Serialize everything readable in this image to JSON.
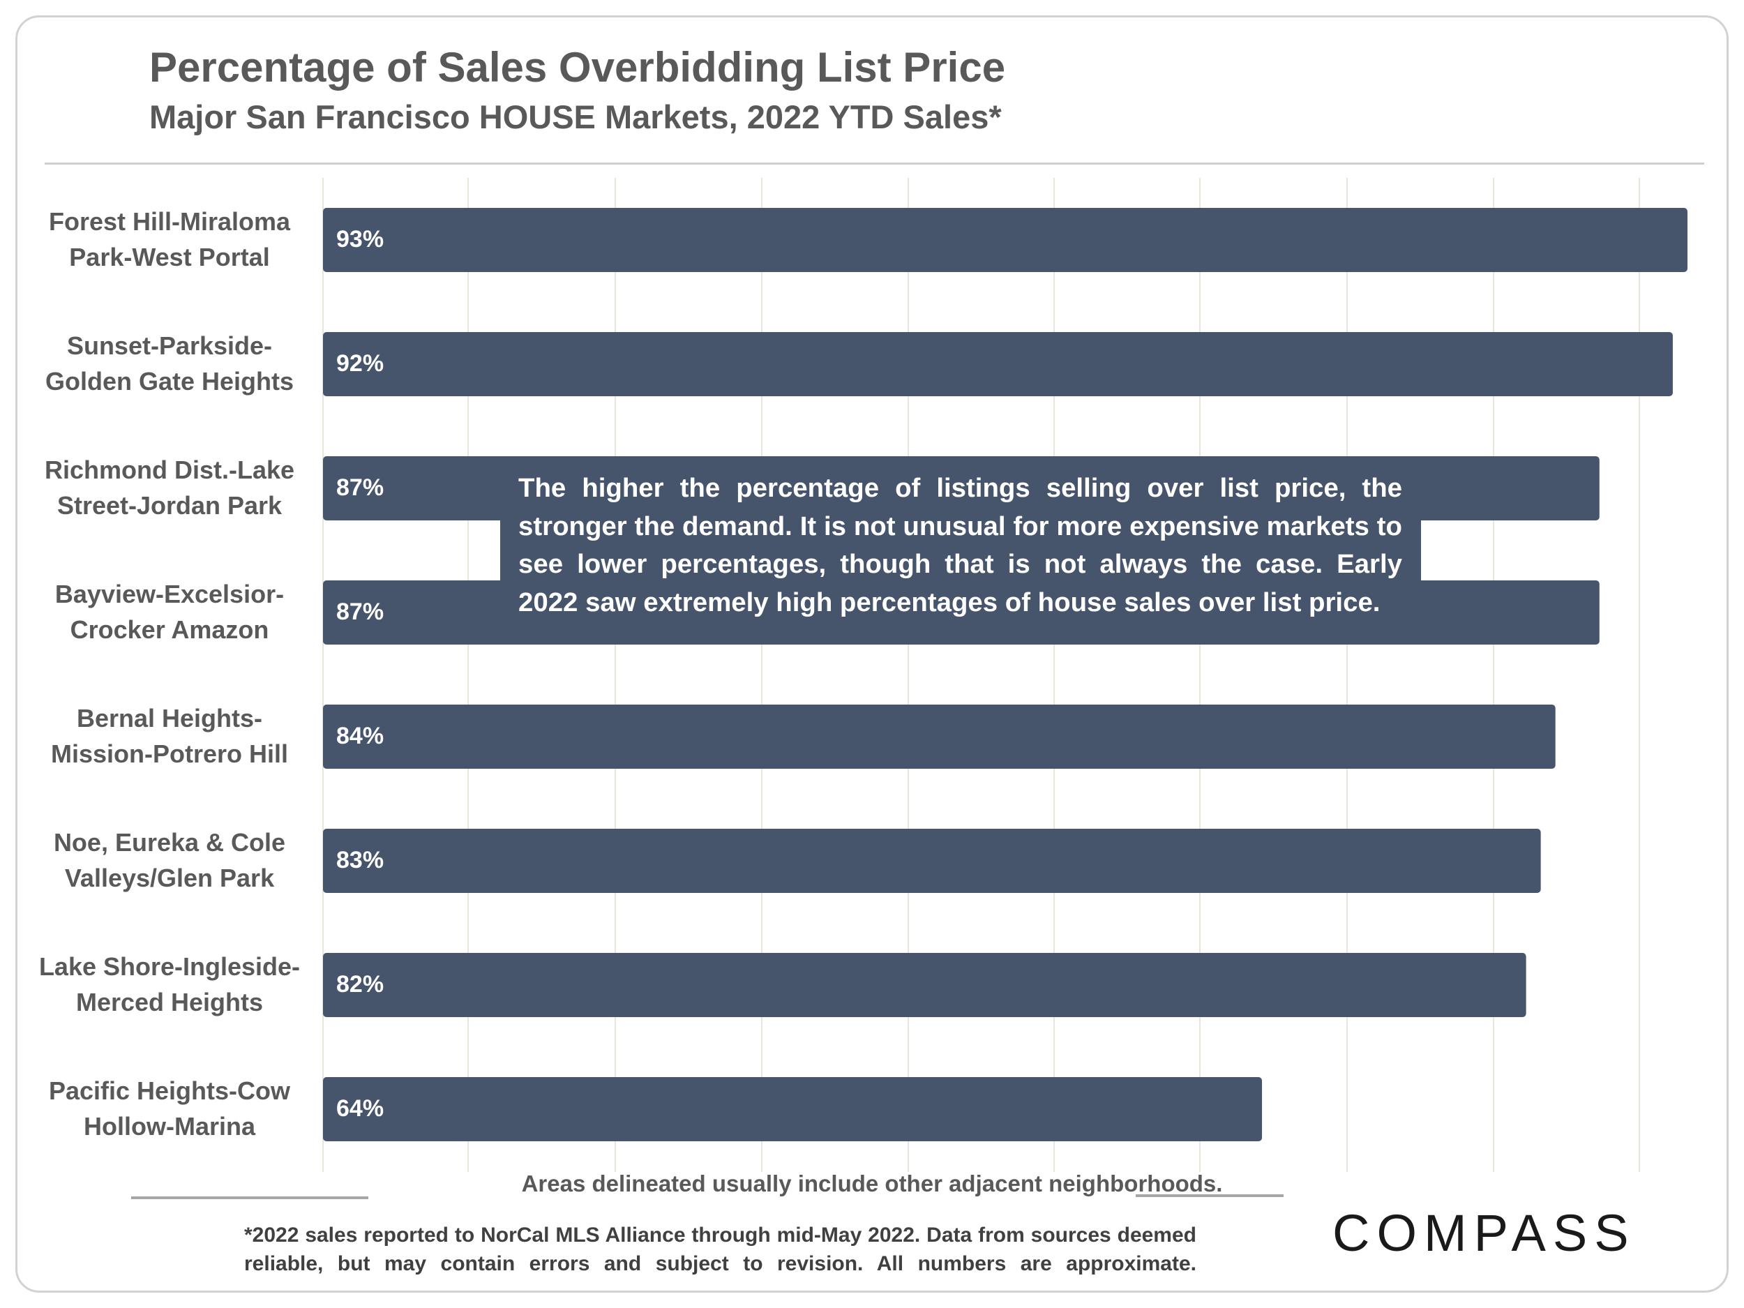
{
  "title": "Percentage of Sales Overbidding List Price",
  "subtitle": "Major San Francisco HOUSE Markets, 2022 YTD Sales*",
  "callout": "The higher the percentage of listings selling over list price, the stronger the demand. It is not unusual for more expensive markets to see lower percentages, though that is not always the case. Early 2022 saw extremely high percentages of house sales over list price.",
  "footer": {
    "areas_note": "Areas delineated usually include other adjacent neighborhoods.",
    "disclaimer": "*2022 sales reported to NorCal MLS Alliance through mid-May 2022. Data from sources deemed reliable, but may contain errors and subject to revision. All numbers are approximate."
  },
  "brand": {
    "logo": "COMPASS"
  },
  "colors": {
    "bar": "#46546c",
    "gridline": "#e6e6dc",
    "text": "#595959"
  },
  "chart_data": {
    "type": "bar",
    "orientation": "horizontal",
    "title": "Percentage of Sales Overbidding List Price",
    "subtitle": "Major San Francisco HOUSE Markets, 2022 YTD Sales*",
    "xlabel": "",
    "ylabel": "",
    "xlim": [
      0,
      94
    ],
    "grid": true,
    "categories": [
      {
        "line1": "Forest Hill-Miraloma",
        "line2": "Park-West Portal"
      },
      {
        "line1": "Sunset-Parkside-",
        "line2": "Golden Gate Heights"
      },
      {
        "line1": "Richmond Dist.-Lake",
        "line2": "Street-Jordan Park"
      },
      {
        "line1": "Bayview-Excelsior-",
        "line2": "Crocker Amazon"
      },
      {
        "line1": "Bernal Heights-",
        "line2": "Mission-Potrero Hill"
      },
      {
        "line1": "Noe, Eureka & Cole",
        "line2": "Valleys/Glen Park"
      },
      {
        "line1": "Lake Shore-Ingleside-",
        "line2": "Merced Heights"
      },
      {
        "line1": "Pacific Heights-Cow",
        "line2": "Hollow-Marina"
      }
    ],
    "values": [
      93,
      92,
      87,
      87,
      84,
      83,
      82,
      64
    ],
    "value_labels": [
      "93%",
      "92%",
      "87%",
      "87%",
      "84%",
      "83%",
      "82%",
      "64%"
    ]
  }
}
